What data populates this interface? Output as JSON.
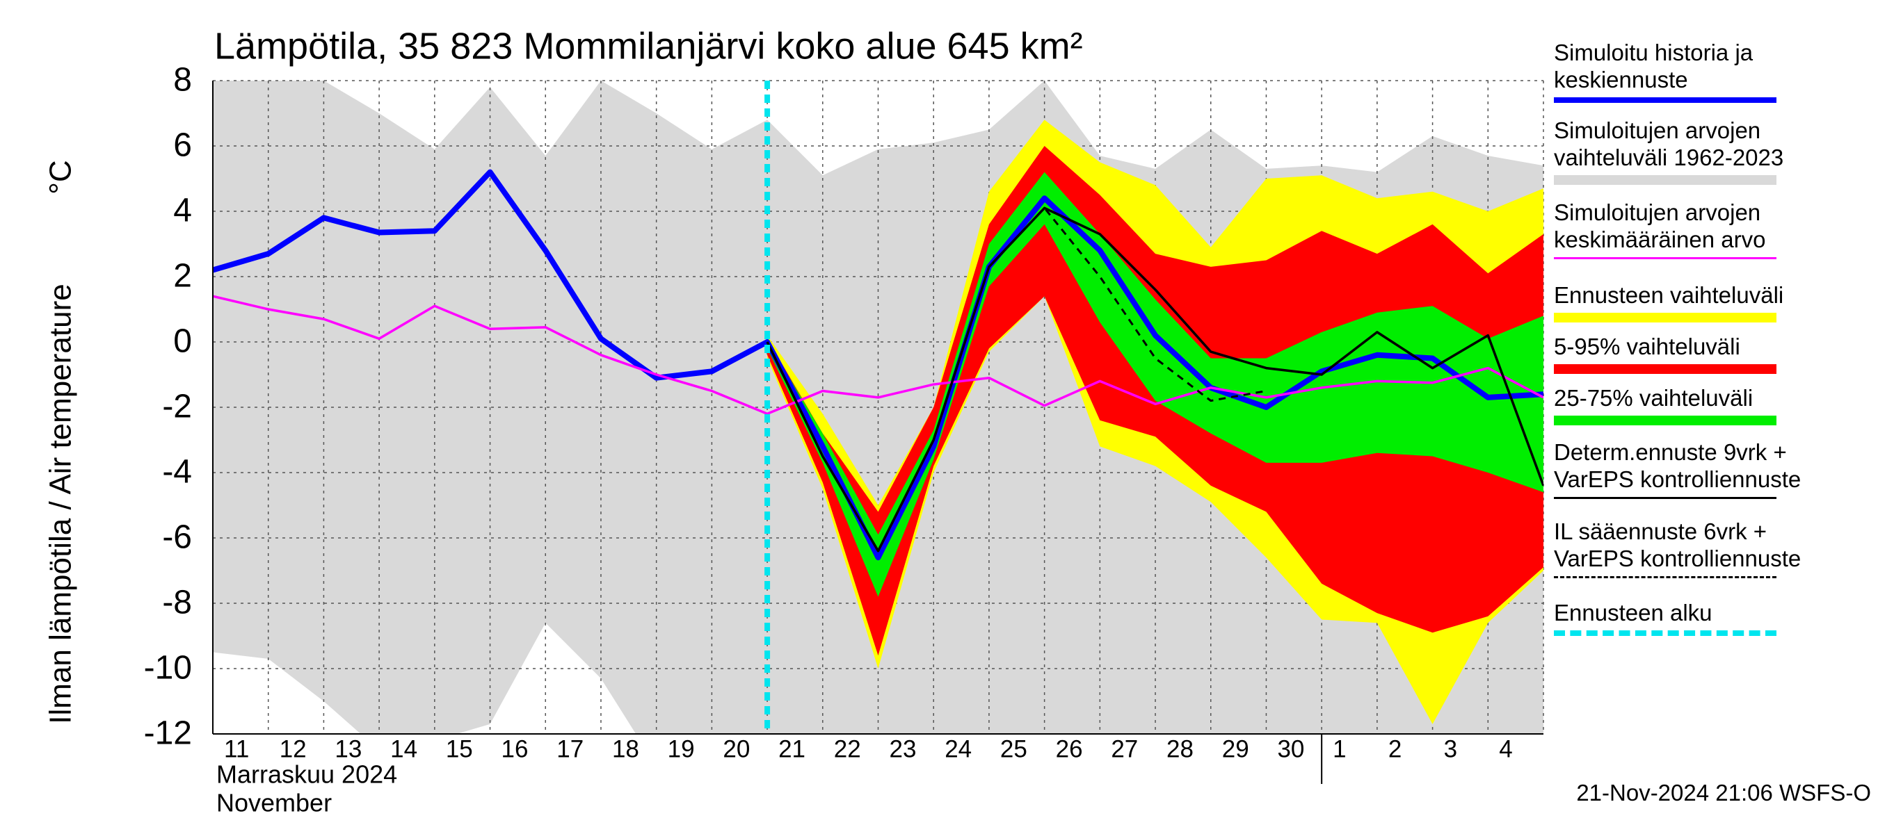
{
  "chart_data": {
    "type": "line",
    "title": "Lämpötila, 35 823 Mommilanjärvi koko alue 645 km²",
    "ylabel": "Ilman lämpötila / Air temperature",
    "yunit": "°C",
    "month_label": "Marraskuu 2024",
    "month_label_en": "November",
    "timestamp": "21-Nov-2024 21:06 WSFS-O",
    "categories": [
      "11",
      "12",
      "13",
      "14",
      "15",
      "16",
      "17",
      "18",
      "19",
      "20",
      "21",
      "22",
      "23",
      "24",
      "25",
      "26",
      "27",
      "28",
      "29",
      "30",
      "1",
      "2",
      "3",
      "4",
      null
    ],
    "ylim": [
      -12,
      8
    ],
    "yticks": [
      8,
      6,
      4,
      2,
      0,
      -2,
      -4,
      -6,
      -8,
      -10,
      -12
    ],
    "grid": true,
    "series": [
      {
        "name": "Simuloitu historia ja\nkeskiennuste",
        "kind": "line",
        "style": "bold",
        "color": "#0000ff",
        "values": [
          2.2,
          2.7,
          3.8,
          3.35,
          3.4,
          5.2,
          2.8,
          0.1,
          -1.1,
          -0.9,
          0.0,
          -3.2,
          -6.6,
          -3.2,
          2.3,
          4.4,
          2.8,
          0.2,
          -1.4,
          -2.0,
          -0.9,
          -0.4,
          -0.5,
          -1.7,
          -1.6
        ]
      },
      {
        "name": "Simuloitujen arvojen\nvaihteluväli 1962-2023",
        "kind": "band",
        "color": "#d9d9d9",
        "low": [
          -9.5,
          -9.7,
          -11.0,
          -12.5,
          -12.2,
          -11.7,
          -8.6,
          -10.3,
          -13,
          -13,
          -13,
          -13,
          -13,
          -13,
          -13,
          -13,
          -13,
          -13,
          -13,
          -13,
          -13,
          -13,
          -13,
          -13,
          -13
        ],
        "high": [
          8,
          8,
          8,
          7,
          5.9,
          7.8,
          5.7,
          8,
          7,
          5.9,
          6.8,
          5.1,
          5.9,
          6.1,
          6.5,
          8,
          5.7,
          5.3,
          6.5,
          5.3,
          5.4,
          5.2,
          6.3,
          5.7,
          5.4
        ]
      },
      {
        "name": "Simuloitujen arvojen\nkeskimääräinen arvo",
        "kind": "line",
        "style": "normal",
        "color": "#ff00ff",
        "values": [
          1.4,
          1.0,
          0.7,
          0.1,
          1.1,
          0.4,
          0.45,
          -0.4,
          -1.0,
          -1.5,
          -2.2,
          -1.5,
          -1.7,
          -1.3,
          -1.1,
          -1.95,
          -1.2,
          -1.9,
          -1.4,
          -1.7,
          -1.4,
          -1.2,
          -1.25,
          -0.8,
          -1.7
        ]
      },
      {
        "name": "Ennusteen vaihteluväli",
        "kind": "band",
        "color": "#ffff00",
        "low": [
          null,
          null,
          null,
          null,
          null,
          null,
          null,
          null,
          null,
          null,
          -0.5,
          -4.5,
          -10.0,
          -4.0,
          -0.3,
          1.4,
          -3.2,
          -3.8,
          -4.9,
          -6.6,
          -8.5,
          -8.6,
          -11.7,
          -8.6,
          -7.0
        ],
        "high": [
          null,
          null,
          null,
          null,
          null,
          null,
          null,
          null,
          null,
          null,
          0.2,
          -2.2,
          -5.0,
          -2.0,
          4.6,
          6.8,
          5.5,
          4.8,
          2.9,
          5.0,
          5.1,
          4.4,
          4.6,
          4.0,
          4.7
        ]
      },
      {
        "name": "5-95% vaihteluväli",
        "kind": "band",
        "color": "#ff0000",
        "low": [
          null,
          null,
          null,
          null,
          null,
          null,
          null,
          null,
          null,
          null,
          -0.4,
          -4.3,
          -9.6,
          -3.8,
          -0.2,
          1.4,
          -2.4,
          -2.9,
          -4.4,
          -5.2,
          -7.4,
          -8.3,
          -8.9,
          -8.4,
          -6.9
        ],
        "high": [
          null,
          null,
          null,
          null,
          null,
          null,
          null,
          null,
          null,
          null,
          0.1,
          -2.8,
          -5.2,
          -2.0,
          3.6,
          6.0,
          4.5,
          2.7,
          2.3,
          2.5,
          3.4,
          2.7,
          3.6,
          2.1,
          3.3
        ]
      },
      {
        "name": "25-75% vaihteluväli",
        "kind": "band",
        "color": "#00ee00",
        "low": [
          null,
          null,
          null,
          null,
          null,
          null,
          null,
          null,
          null,
          null,
          -0.2,
          -3.7,
          -7.8,
          -3.6,
          1.7,
          3.6,
          0.6,
          -1.8,
          -2.8,
          -3.7,
          -3.7,
          -3.4,
          -3.5,
          -4.0,
          -4.6
        ],
        "high": [
          null,
          null,
          null,
          null,
          null,
          null,
          null,
          null,
          null,
          null,
          0.05,
          -2.8,
          -5.9,
          -2.7,
          3.0,
          5.2,
          3.3,
          1.3,
          -0.5,
          -0.5,
          0.3,
          0.9,
          1.1,
          0.1,
          0.8
        ]
      },
      {
        "name": "Determ.ennuste 9vrk +\nVarEPS kontrolliennuste",
        "kind": "line",
        "style": "normal",
        "color": "#000000",
        "values": [
          null,
          null,
          null,
          null,
          null,
          null,
          null,
          null,
          null,
          null,
          0.0,
          -3.5,
          -6.4,
          -3.0,
          2.3,
          4.1,
          3.3,
          1.6,
          -0.3,
          -0.8,
          -1.0,
          0.3,
          -0.8,
          0.2,
          -4.4
        ]
      },
      {
        "name": "IL sääennuste 6vrk  +\n  VarEPS kontrolliennuste",
        "kind": "line",
        "style": "dashed",
        "color": "#000000",
        "values": [
          null,
          null,
          null,
          null,
          null,
          null,
          null,
          null,
          null,
          null,
          0.0,
          -3.5,
          -6.4,
          -3.0,
          2.3,
          4.1,
          2.0,
          -0.5,
          -1.8,
          -1.5,
          null,
          null,
          null,
          null,
          null
        ]
      }
    ],
    "forecast_start": {
      "name": "Ennusteen alku",
      "color": "#00e5ee",
      "x": "21"
    }
  }
}
